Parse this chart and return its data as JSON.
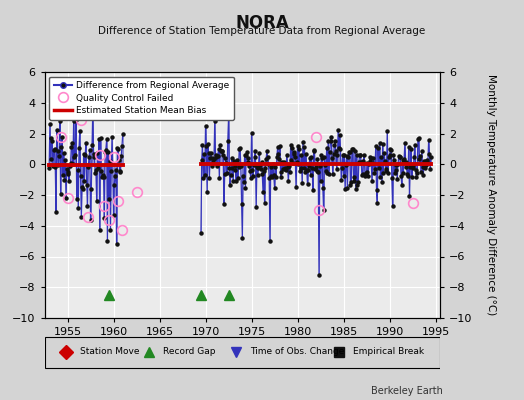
{
  "title": "NORA",
  "subtitle": "Difference of Station Temperature Data from Regional Average",
  "ylabel": "Monthly Temperature Anomaly Difference (°C)",
  "watermark": "Berkeley Earth",
  "xlim": [
    1952.5,
    1995.5
  ],
  "ylim": [
    -10,
    6
  ],
  "yticks": [
    -10,
    -8,
    -6,
    -4,
    -2,
    0,
    2,
    4,
    6
  ],
  "xticks": [
    1955,
    1960,
    1965,
    1970,
    1975,
    1980,
    1985,
    1990,
    1995
  ],
  "fig_bg": "#d4d4d4",
  "plot_bg": "#ebebeb",
  "grid_color": "#ffffff",
  "line_color": "#3333bb",
  "stem_color": "#7777cc",
  "dot_color": "#111111",
  "bias_color": "#cc0000",
  "qc_edge_color": "#ff88cc",
  "gap_color": "#228822",
  "obs_color": "#3333bb",
  "seg1_start": 1953.0,
  "seg1_end": 1961.0,
  "seg1_bias": -0.05,
  "seg2_start": 1969.5,
  "seg2_end": 1994.5,
  "seg2_bias": 0.0,
  "record_gaps": [
    1959.5,
    1969.5,
    1972.5
  ],
  "legend_bottom_items": [
    {
      "label": "Station Move",
      "marker": "D",
      "color": "#cc0000"
    },
    {
      "label": "Record Gap",
      "marker": "^",
      "color": "#228822"
    },
    {
      "label": "Time of Obs. Change",
      "marker": "v",
      "color": "#3333bb"
    },
    {
      "label": "Empirical Break",
      "marker": "s",
      "color": "#111111"
    }
  ]
}
